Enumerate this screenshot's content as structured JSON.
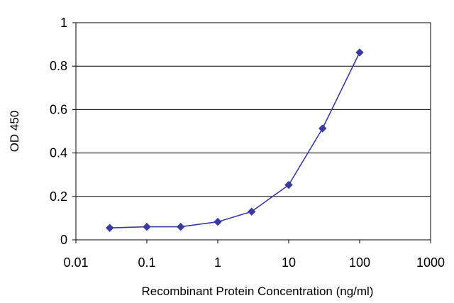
{
  "chart_data": {
    "type": "line",
    "title": "",
    "xlabel": "Recombinant Protein Concentration (ng/ml)",
    "ylabel": "OD 450",
    "xscale": "log",
    "xlim": [
      0.01,
      1000
    ],
    "ylim": [
      0,
      1
    ],
    "x_ticks": [
      0.01,
      0.1,
      1,
      10,
      100,
      1000
    ],
    "x_tick_labels": [
      "0.01",
      "0.1",
      "1",
      "10",
      "100",
      "1000"
    ],
    "y_ticks": [
      0,
      0.2,
      0.4,
      0.6,
      0.8,
      1
    ],
    "y_tick_labels": [
      "0",
      "0.2",
      "0.4",
      "0.6",
      "0.8",
      "1"
    ],
    "grid": "horizontal",
    "legend": "none",
    "series_color": "#3a3aa0",
    "series": [
      {
        "x": [
          0.03,
          0.1,
          0.3,
          1,
          3,
          10,
          30,
          100
        ],
        "y": [
          0.055,
          0.06,
          0.06,
          0.083,
          0.13,
          0.253,
          0.513,
          0.863
        ]
      }
    ]
  }
}
